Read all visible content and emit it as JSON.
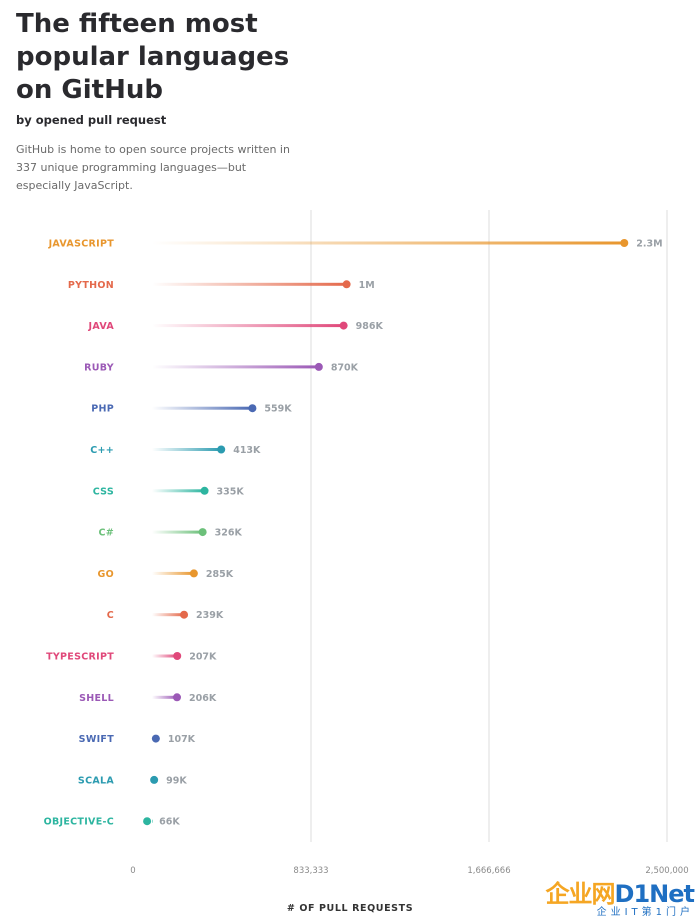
{
  "title": "The fifteen most popular languages on GitHub",
  "subtitle": "by opened pull request",
  "description": "GitHub is home to open source projects written in 337 unique programming languages—but especially JavaScript.",
  "watermark": {
    "main_a": "企业网",
    "main_b": "D1Net",
    "sub": "企业IT第1门户"
  },
  "chart_data": {
    "type": "bar",
    "style": "lollipop",
    "categories": [
      "JAVASCRIPT",
      "PYTHON",
      "JAVA",
      "RUBY",
      "PHP",
      "C++",
      "CSS",
      "C#",
      "GO",
      "C",
      "TYPESCRIPT",
      "SHELL",
      "SWIFT",
      "SCALA",
      "OBJECTIVE-C"
    ],
    "values": [
      2300000,
      1000000,
      986000,
      870000,
      559000,
      413000,
      335000,
      326000,
      285000,
      239000,
      207000,
      206000,
      107000,
      99000,
      66000
    ],
    "value_labels": [
      "2.3M",
      "1M",
      "986K",
      "870K",
      "559K",
      "413K",
      "335K",
      "326K",
      "285K",
      "239K",
      "207K",
      "206K",
      "107K",
      "99K",
      "66K"
    ],
    "colors": [
      "#e8962d",
      "#e4694b",
      "#e0487a",
      "#9b59b6",
      "#4a69b3",
      "#2b9bb0",
      "#2db5a0",
      "#6cc07a",
      "#e8962d",
      "#e4694b",
      "#e0487a",
      "#9b59b6",
      "#4a69b3",
      "#2b9bb0",
      "#2db5a0"
    ],
    "xticks": [
      "0",
      "833,333",
      "1,666,666",
      "2,500,000"
    ],
    "xtick_values": [
      0,
      833333,
      1666666,
      2500000
    ],
    "xlim": [
      0,
      2500000
    ],
    "xlabel": "# OF PULL REQUESTS",
    "ylabel": "",
    "grid": true,
    "orientation": "horizontal"
  }
}
